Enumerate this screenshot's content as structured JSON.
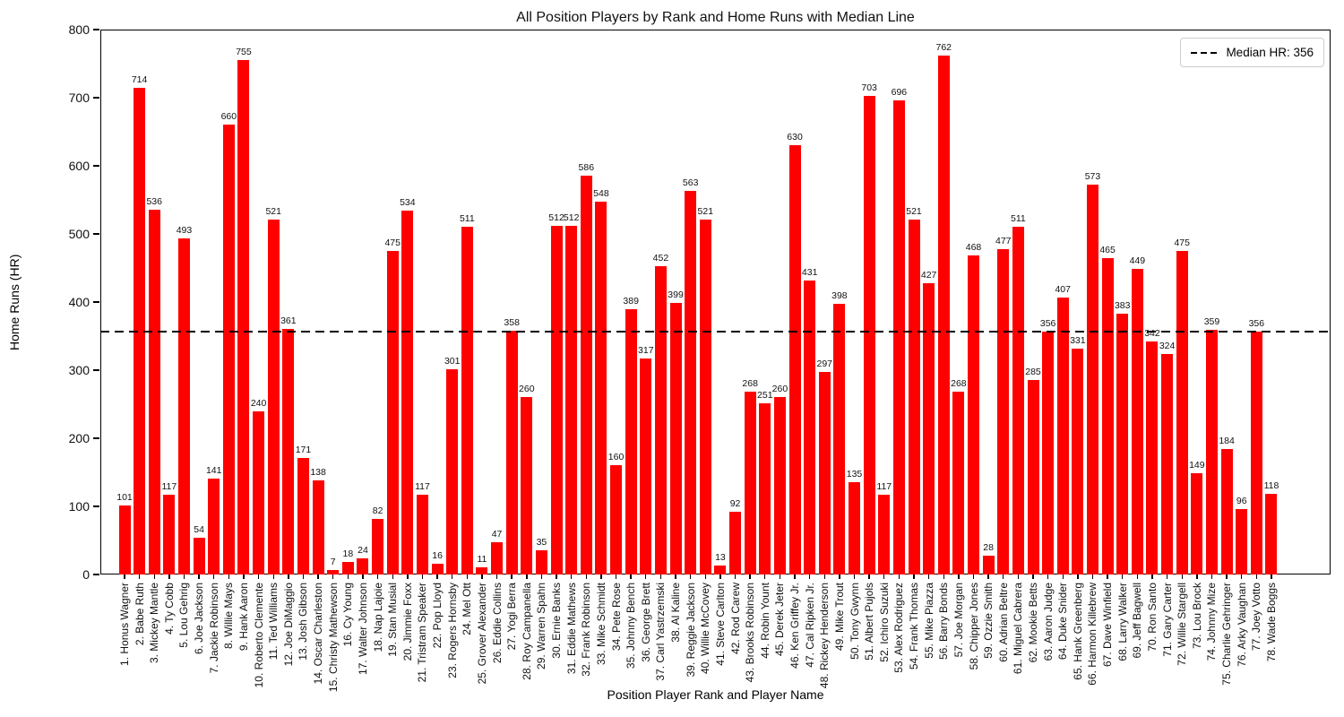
{
  "chart_data": {
    "type": "bar",
    "title": "All Position Players by Rank and Home Runs with Median Line",
    "xlabel": "Position Player Rank and Player Name",
    "ylabel": "Home Runs (HR)",
    "ylim": [
      0,
      800
    ],
    "yticks": [
      0,
      100,
      200,
      300,
      400,
      500,
      600,
      700,
      800
    ],
    "grid": false,
    "bar_color": "#ff0000",
    "value_labels_shown": true,
    "legend": {
      "position": "upper right",
      "entries": [
        {
          "label": "Median HR: 356",
          "style": "dashed",
          "color": "#000000"
        }
      ]
    },
    "median_line": {
      "value": 356,
      "color": "#000000",
      "style": "dashed"
    },
    "categories": [
      "1. Honus Wagner",
      "2. Babe Ruth",
      "3. Mickey Mantle",
      "4. Ty Cobb",
      "5. Lou Gehrig",
      "6. Joe Jackson",
      "7. Jackie Robinson",
      "8. Willie Mays",
      "9. Hank Aaron",
      "10. Roberto Clemente",
      "11. Ted Williams",
      "12. Joe DiMaggio",
      "13. Josh Gibson",
      "14. Oscar Charleston",
      "15. Christy Mathewson",
      "16. Cy Young",
      "17. Walter Johnson",
      "18. Nap Lajoie",
      "19. Stan Musial",
      "20. Jimmie Foxx",
      "21. Tristram Speaker",
      "22. Pop Lloyd",
      "23. Rogers Hornsby",
      "24. Mel Ott",
      "25. Grover Alexander",
      "26. Eddie Collins",
      "27. Yogi Berra",
      "28. Roy Campanella",
      "29. Warren Spahn",
      "30. Ernie Banks",
      "31. Eddie Mathews",
      "32. Frank Robinson",
      "33. Mike Schmidt",
      "34. Pete Rose",
      "35. Johnny Bench",
      "36. George Brett",
      "37. Carl Yastrzemski",
      "38. Al Kaline",
      "39. Reggie Jackson",
      "40. Willie McCovey",
      "41. Steve Carlton",
      "42. Rod Carew",
      "43. Brooks Robinson",
      "44. Robin Yount",
      "45. Derek Jeter",
      "46. Ken Griffey Jr.",
      "47. Cal Ripken Jr.",
      "48. Rickey Henderson",
      "49. Mike Trout",
      "50. Tony Gwynn",
      "51. Albert Pujols",
      "52. Ichiro Suzuki",
      "53. Alex Rodriguez",
      "54. Frank Thomas",
      "55. Mike Piazza",
      "56. Barry Bonds",
      "57. Joe Morgan",
      "58. Chipper Jones",
      "59. Ozzie Smith",
      "60. Adrian Beltre",
      "61. Miguel Cabrera",
      "62. Mookie Betts",
      "63. Aaron Judge",
      "64. Duke Snider",
      "65. Hank Greenberg",
      "66. Harmon Killebrew",
      "67. Dave Winfield",
      "68. Larry Walker",
      "69. Jeff Bagwell",
      "70. Ron Santo",
      "71. Gary Carter",
      "72. Willie Stargell",
      "73. Lou Brock",
      "74. Johnny Mize",
      "75. Charlie Gehringer",
      "76. Arky Vaughan",
      "77. Joey Votto",
      "78. Wade Boggs"
    ],
    "values": [
      101,
      714,
      536,
      117,
      493,
      54,
      141,
      660,
      755,
      240,
      521,
      361,
      171,
      138,
      7,
      18,
      24,
      82,
      475,
      534,
      117,
      16,
      301,
      511,
      11,
      47,
      358,
      260,
      35,
      512,
      512,
      586,
      548,
      160,
      389,
      317,
      452,
      399,
      563,
      521,
      13,
      92,
      268,
      251,
      260,
      630,
      431,
      297,
      398,
      135,
      703,
      117,
      696,
      521,
      427,
      762,
      268,
      468,
      28,
      477,
      511,
      285,
      356,
      407,
      331,
      573,
      465,
      383,
      449,
      342,
      324,
      475,
      149,
      359,
      184,
      96,
      356,
      118
    ]
  }
}
